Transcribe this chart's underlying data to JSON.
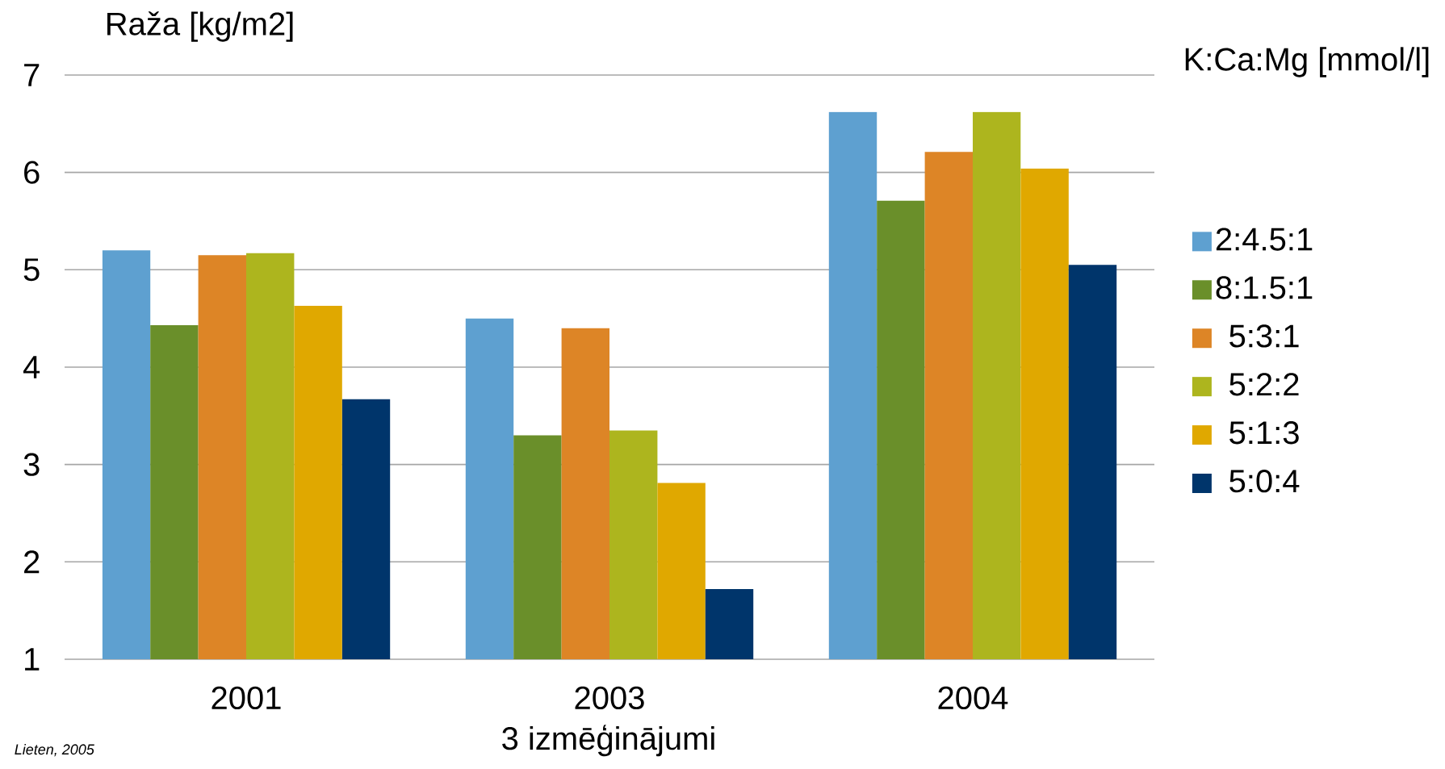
{
  "chart_data": {
    "type": "bar",
    "ylabel": "Raža [kg/m2]",
    "xlabel": "3 izmēģinājumi",
    "legend_title": "K:Ca:Mg [mmol/l]",
    "annotations": [
      "Lieten, 2005"
    ],
    "categories": [
      "2001",
      "2003",
      "2004"
    ],
    "series": [
      {
        "name": "2:4.5:1",
        "color": "#5ea0d0",
        "values": [
          5.2,
          4.5,
          6.62
        ]
      },
      {
        "name": "8:1.5:1",
        "color": "#6a8f2a",
        "values": [
          4.43,
          3.3,
          5.71
        ]
      },
      {
        "name": "5:3:1",
        "color": "#dd8526",
        "values": [
          5.15,
          4.4,
          6.21
        ]
      },
      {
        "name": "5:2:2",
        "color": "#adb51e",
        "values": [
          5.17,
          3.35,
          6.62
        ]
      },
      {
        "name": "5:1:3",
        "color": "#e0a800",
        "values": [
          4.63,
          2.81,
          6.04
        ]
      },
      {
        "name": "5:0:4",
        "color": "#00356b",
        "values": [
          3.67,
          1.72,
          5.05
        ]
      }
    ],
    "ylim": [
      1,
      7
    ],
    "yticks": [
      1,
      2,
      3,
      4,
      5,
      6,
      7
    ],
    "grid": "y",
    "legend": "right"
  }
}
